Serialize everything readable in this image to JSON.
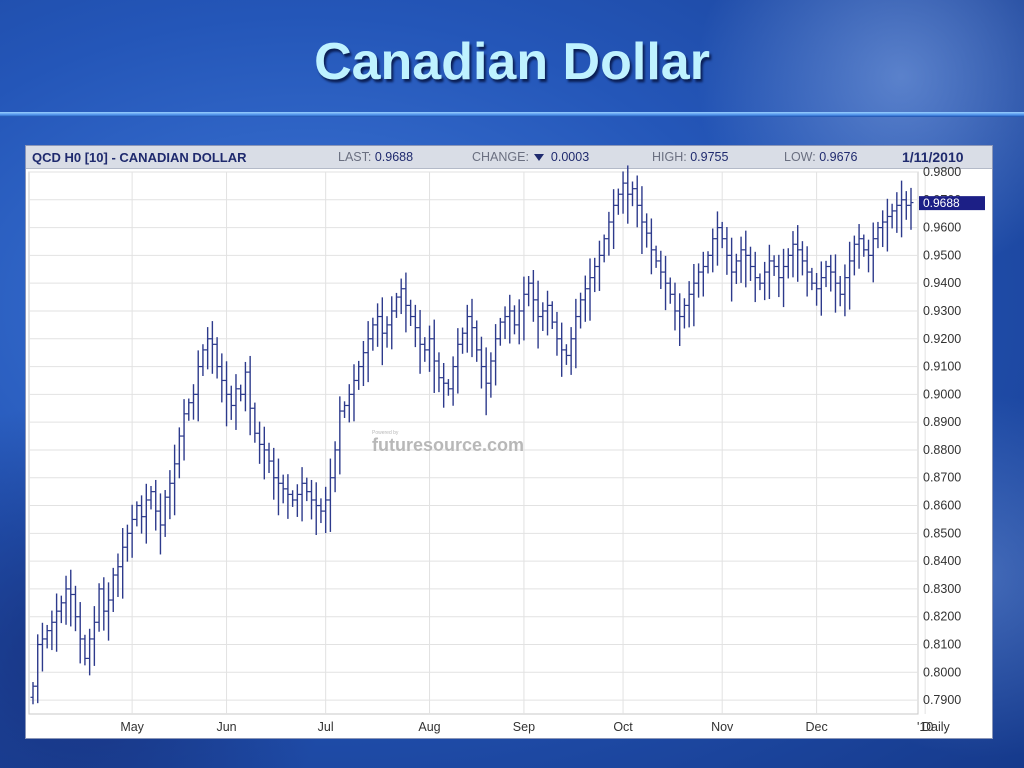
{
  "slide": {
    "title": "Canadian Dollar",
    "colors": {
      "title": "#bff2ff",
      "background": "#2456b8"
    }
  },
  "header": {
    "symbol": "QCD H0 [10] - CANADIAN DOLLAR",
    "last_label": "LAST:",
    "last_value": "0.9688",
    "change_label": "CHANGE:",
    "change_direction_icon": "down-triangle-icon",
    "change_value": "0.0003",
    "high_label": "HIGH:",
    "high_value": "0.9755",
    "low_label": "LOW:",
    "low_value": "0.9676",
    "date": "1/11/2010"
  },
  "watermark": {
    "small": "Powered by",
    "text": "futuresource.com"
  },
  "chart_data": {
    "type": "ohlc-bar",
    "title": "QCD H0 [10] - CANADIAN DOLLAR",
    "xlabel": "",
    "ylabel": "",
    "ylim": [
      0.785,
      0.98
    ],
    "y_ticks": [
      "0.9800",
      "0.9700",
      "0.9600",
      "0.9500",
      "0.9400",
      "0.9300",
      "0.9200",
      "0.9100",
      "0.9000",
      "0.8900",
      "0.8800",
      "0.8700",
      "0.8600",
      "0.8500",
      "0.8400",
      "0.8300",
      "0.8200",
      "0.8100",
      "0.8000",
      "0.7900"
    ],
    "y_tick_values": [
      0.98,
      0.97,
      0.96,
      0.95,
      0.94,
      0.93,
      0.92,
      0.91,
      0.9,
      0.89,
      0.88,
      0.87,
      0.86,
      0.85,
      0.84,
      0.83,
      0.82,
      0.81,
      0.8,
      0.79
    ],
    "x_ticks": [
      "May",
      "Jun",
      "Jul",
      "Aug",
      "Sep",
      "Oct",
      "Nov",
      "Dec",
      "'10"
    ],
    "x_tick_index": [
      21,
      41,
      62,
      84,
      104,
      125,
      146,
      166,
      189
    ],
    "period_label": "Daily",
    "last_marker": "0.9688",
    "last_value": 0.9688,
    "grid": true,
    "series_color": "#2d3a8c",
    "closes": [
      0.795,
      0.81,
      0.812,
      0.815,
      0.818,
      0.822,
      0.825,
      0.83,
      0.828,
      0.82,
      0.812,
      0.805,
      0.812,
      0.818,
      0.83,
      0.822,
      0.826,
      0.835,
      0.838,
      0.845,
      0.85,
      0.855,
      0.86,
      0.856,
      0.862,
      0.865,
      0.858,
      0.853,
      0.863,
      0.868,
      0.875,
      0.885,
      0.893,
      0.897,
      0.9,
      0.91,
      0.916,
      0.92,
      0.918,
      0.91,
      0.905,
      0.9,
      0.896,
      0.902,
      0.9,
      0.908,
      0.895,
      0.886,
      0.882,
      0.88,
      0.876,
      0.87,
      0.868,
      0.866,
      0.864,
      0.862,
      0.864,
      0.868,
      0.865,
      0.862,
      0.86,
      0.858,
      0.862,
      0.87,
      0.88,
      0.894,
      0.896,
      0.9,
      0.905,
      0.91,
      0.915,
      0.92,
      0.925,
      0.928,
      0.922,
      0.925,
      0.93,
      0.935,
      0.938,
      0.932,
      0.928,
      0.924,
      0.918,
      0.916,
      0.92,
      0.912,
      0.906,
      0.904,
      0.902,
      0.91,
      0.918,
      0.922,
      0.928,
      0.924,
      0.916,
      0.91,
      0.904,
      0.912,
      0.92,
      0.926,
      0.928,
      0.93,
      0.925,
      0.93,
      0.936,
      0.94,
      0.934,
      0.928,
      0.93,
      0.932,
      0.926,
      0.92,
      0.916,
      0.914,
      0.92,
      0.928,
      0.934,
      0.938,
      0.942,
      0.946,
      0.95,
      0.956,
      0.962,
      0.968,
      0.972,
      0.976,
      0.972,
      0.974,
      0.968,
      0.962,
      0.958,
      0.952,
      0.948,
      0.944,
      0.94,
      0.936,
      0.93,
      0.928,
      0.932,
      0.936,
      0.94,
      0.944,
      0.946,
      0.95,
      0.956,
      0.96,
      0.956,
      0.95,
      0.944,
      0.948,
      0.952,
      0.95,
      0.946,
      0.942,
      0.94,
      0.944,
      0.948,
      0.946,
      0.942,
      0.946,
      0.95,
      0.954,
      0.952,
      0.948,
      0.944,
      0.94,
      0.938,
      0.942,
      0.946,
      0.944,
      0.94,
      0.936,
      0.942,
      0.948,
      0.954,
      0.956,
      0.952,
      0.95,
      0.956,
      0.96,
      0.962,
      0.964,
      0.966,
      0.968,
      0.97,
      0.968,
      0.969
    ]
  }
}
